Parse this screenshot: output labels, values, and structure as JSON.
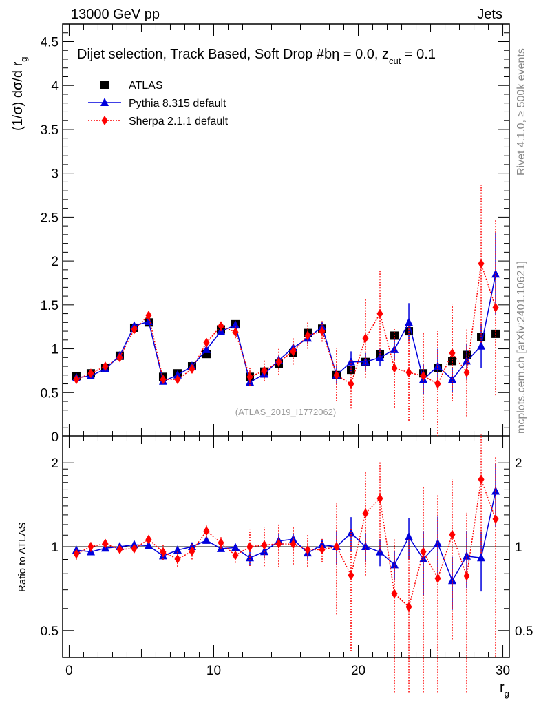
{
  "header": {
    "left": "13000 GeV pp",
    "right": "Jets"
  },
  "side_labels": {
    "top": "Rivet 4.1.0, ≥ 500k events",
    "bottom": "mcplots.cern.ch [arXiv:2401.10621]"
  },
  "chart_data": {
    "type": "line",
    "title": "Dijet selection, Track Based, Soft Drop #bη = 0.0, z",
    "title_sub": "cut",
    "title_tail": " = 0.1",
    "watermark": "(ATLAS_2019_I1772062)",
    "xlabel": "r",
    "xlabel_sub": "g",
    "ylabel": "(1/σ) dσ/d r",
    "ylabel_sub": "g",
    "ratio_ylabel": "Ratio to ATLAS",
    "xlim": [
      -0.45,
      30.45
    ],
    "ylim": [
      0,
      4.7
    ],
    "ratio_ylim": [
      0.4,
      2.5
    ],
    "ratio_scale": "log",
    "xticks": [
      0,
      10,
      20,
      30
    ],
    "yticks": [
      "0",
      "0.5",
      "1",
      "1.5",
      "2",
      "2.5",
      "3",
      "3.5",
      "4",
      "4.5"
    ],
    "ratio_yticks": [
      "0.5",
      "1",
      "2"
    ],
    "legend_position": "top-left",
    "x": [
      0.5,
      1.5,
      2.5,
      3.5,
      4.5,
      5.5,
      6.5,
      7.5,
      8.5,
      9.5,
      10.5,
      11.5,
      12.5,
      13.5,
      14.5,
      15.5,
      16.5,
      17.5,
      18.5,
      19.5,
      20.5,
      21.5,
      22.5,
      23.5,
      24.5,
      25.5,
      26.5,
      27.5,
      28.5,
      29.5
    ],
    "series": [
      {
        "name": "ATLAS",
        "color": "#000000",
        "marker": "square",
        "values": [
          0.69,
          0.72,
          0.78,
          0.92,
          1.24,
          1.3,
          0.68,
          0.72,
          0.8,
          0.94,
          1.22,
          1.28,
          0.68,
          0.74,
          0.83,
          0.95,
          1.18,
          1.23,
          0.7,
          0.76,
          0.85,
          0.94,
          1.15,
          1.2,
          0.72,
          0.78,
          0.86,
          0.93,
          1.13,
          1.17
        ],
        "errors": [
          0.01,
          0.01,
          0.01,
          0.01,
          0.01,
          0.01,
          0.01,
          0.01,
          0.01,
          0.01,
          0.01,
          0.01,
          0.01,
          0.01,
          0.01,
          0.01,
          0.01,
          0.01,
          0.01,
          0.01,
          0.01,
          0.01,
          0.01,
          0.01,
          0.01,
          0.01,
          0.01,
          0.01,
          0.01,
          0.01
        ]
      },
      {
        "name": "Pythia 8.315 default",
        "color": "#0000dd",
        "marker": "triangle",
        "values": [
          0.67,
          0.69,
          0.77,
          0.92,
          1.26,
          1.31,
          0.63,
          0.7,
          0.8,
          0.99,
          1.2,
          1.27,
          0.62,
          0.71,
          0.87,
          1.01,
          1.12,
          1.25,
          0.7,
          0.85,
          0.85,
          0.9,
          0.99,
          1.3,
          0.65,
          0.8,
          0.65,
          0.86,
          1.03,
          1.85
        ],
        "errors": [
          0.01,
          0.01,
          0.01,
          0.01,
          0.02,
          0.02,
          0.02,
          0.02,
          0.02,
          0.02,
          0.02,
          0.03,
          0.04,
          0.04,
          0.05,
          0.05,
          0.06,
          0.06,
          0.1,
          0.12,
          0.1,
          0.1,
          0.12,
          0.22,
          0.17,
          0.2,
          0.14,
          0.2,
          0.25,
          0.47
        ]
      },
      {
        "name": "Sherpa 2.1.1 default",
        "color": "#ff0000",
        "marker": "diamond",
        "values": [
          0.65,
          0.72,
          0.8,
          0.9,
          1.22,
          1.38,
          0.65,
          0.65,
          0.77,
          1.07,
          1.26,
          1.19,
          0.68,
          0.75,
          0.85,
          0.97,
          1.15,
          1.2,
          0.7,
          0.6,
          1.12,
          1.4,
          0.78,
          0.73,
          0.69,
          0.6,
          0.95,
          0.73,
          1.97,
          1.47
        ],
        "errors": [
          0.03,
          0.03,
          0.03,
          0.03,
          0.03,
          0.04,
          0.04,
          0.04,
          0.05,
          0.06,
          0.06,
          0.07,
          0.1,
          0.12,
          0.15,
          0.15,
          0.15,
          0.12,
          0.3,
          0.28,
          0.45,
          0.5,
          0.45,
          0.55,
          0.5,
          0.6,
          0.55,
          0.5,
          0.9,
          1.0
        ]
      }
    ]
  }
}
